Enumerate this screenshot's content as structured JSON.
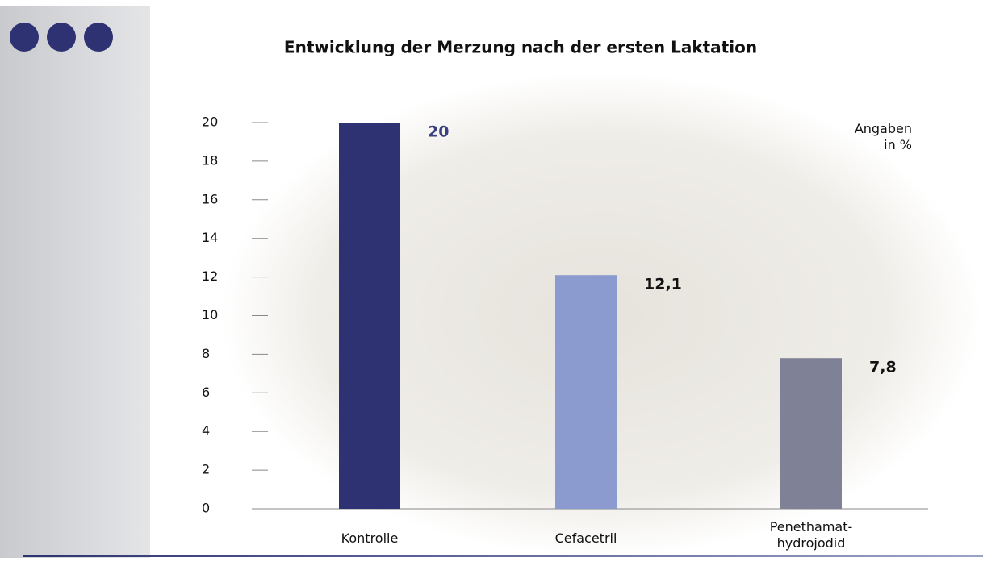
{
  "chart_data": {
    "type": "bar",
    "title": "Entwicklung der Merzung nach der ersten Laktation",
    "unit_note": "Angaben in %",
    "categories": [
      "Kontrolle",
      "Cefacetril",
      "Penethamat-hydrojodid"
    ],
    "values": [
      20,
      12.1,
      7.8
    ],
    "value_labels": [
      "20",
      "12,1",
      "7,8"
    ],
    "colors": [
      "#2e3272",
      "#8b9bd0",
      "#7f8296"
    ],
    "value_label_colors": [
      "#3a3f80",
      "#111111",
      "#111111"
    ],
    "ylim": [
      0,
      20
    ],
    "yticks": [
      0,
      2,
      4,
      6,
      8,
      10,
      12,
      14,
      16,
      18,
      20
    ]
  }
}
